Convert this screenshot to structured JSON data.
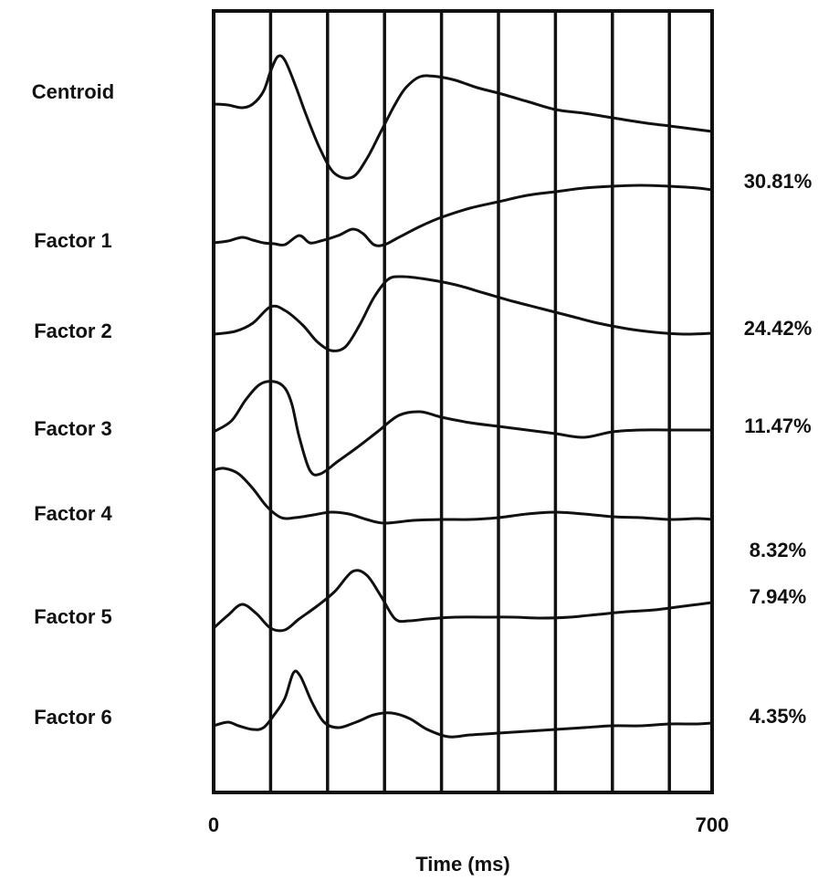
{
  "chart_data": {
    "type": "line",
    "xlabel": "Time (ms)",
    "ylabel": "",
    "xlim": [
      0,
      700
    ],
    "x_ticks": [
      "0",
      "700"
    ],
    "grid": true,
    "grid_interval_ms": 80,
    "series": [
      {
        "name": "Centroid",
        "variance_label": "",
        "points": [
          [
            0,
            0
          ],
          [
            20,
            -1
          ],
          [
            40,
            -4
          ],
          [
            55,
            0
          ],
          [
            70,
            14
          ],
          [
            80,
            36
          ],
          [
            90,
            52
          ],
          [
            100,
            48
          ],
          [
            115,
            20
          ],
          [
            130,
            -12
          ],
          [
            150,
            -50
          ],
          [
            170,
            -76
          ],
          [
            195,
            -80
          ],
          [
            215,
            -60
          ],
          [
            235,
            -30
          ],
          [
            255,
            0
          ],
          [
            270,
            18
          ],
          [
            290,
            30
          ],
          [
            315,
            30
          ],
          [
            340,
            26
          ],
          [
            370,
            18
          ],
          [
            400,
            12
          ],
          [
            440,
            3
          ],
          [
            480,
            -6
          ],
          [
            520,
            -10
          ],
          [
            560,
            -15
          ],
          [
            600,
            -20
          ],
          [
            640,
            -24
          ],
          [
            680,
            -28
          ],
          [
            700,
            -30
          ]
        ]
      },
      {
        "name": "Factor 1",
        "variance_label": "30.81%",
        "points": [
          [
            0,
            0
          ],
          [
            20,
            2
          ],
          [
            40,
            6
          ],
          [
            55,
            3
          ],
          [
            70,
            0
          ],
          [
            85,
            -1
          ],
          [
            100,
            -2
          ],
          [
            120,
            8
          ],
          [
            135,
            0
          ],
          [
            150,
            2
          ],
          [
            175,
            8
          ],
          [
            195,
            15
          ],
          [
            210,
            10
          ],
          [
            225,
            -2
          ],
          [
            240,
            -2
          ],
          [
            260,
            6
          ],
          [
            290,
            18
          ],
          [
            320,
            28
          ],
          [
            360,
            38
          ],
          [
            400,
            45
          ],
          [
            440,
            52
          ],
          [
            480,
            56
          ],
          [
            520,
            60
          ],
          [
            560,
            62
          ],
          [
            600,
            63
          ],
          [
            640,
            62
          ],
          [
            680,
            60
          ],
          [
            700,
            58
          ]
        ]
      },
      {
        "name": "Factor 2",
        "variance_label": "24.42%",
        "points": [
          [
            0,
            0
          ],
          [
            30,
            3
          ],
          [
            55,
            12
          ],
          [
            80,
            30
          ],
          [
            100,
            26
          ],
          [
            125,
            10
          ],
          [
            145,
            -8
          ],
          [
            165,
            -18
          ],
          [
            185,
            -14
          ],
          [
            205,
            10
          ],
          [
            225,
            40
          ],
          [
            245,
            60
          ],
          [
            265,
            63
          ],
          [
            300,
            60
          ],
          [
            340,
            54
          ],
          [
            380,
            45
          ],
          [
            420,
            36
          ],
          [
            460,
            28
          ],
          [
            500,
            20
          ],
          [
            540,
            12
          ],
          [
            580,
            6
          ],
          [
            620,
            2
          ],
          [
            660,
            0
          ],
          [
            700,
            1
          ]
        ]
      },
      {
        "name": "Factor 3",
        "variance_label": "11.47%",
        "points": [
          [
            0,
            0
          ],
          [
            25,
            12
          ],
          [
            45,
            35
          ],
          [
            65,
            52
          ],
          [
            85,
            55
          ],
          [
            100,
            48
          ],
          [
            110,
            30
          ],
          [
            120,
            -5
          ],
          [
            135,
            -42
          ],
          [
            150,
            -46
          ],
          [
            175,
            -32
          ],
          [
            200,
            -18
          ],
          [
            230,
            0
          ],
          [
            260,
            18
          ],
          [
            290,
            22
          ],
          [
            320,
            16
          ],
          [
            360,
            10
          ],
          [
            400,
            6
          ],
          [
            440,
            2
          ],
          [
            480,
            -2
          ],
          [
            520,
            -6
          ],
          [
            560,
            0
          ],
          [
            600,
            2
          ],
          [
            640,
            2
          ],
          [
            680,
            2
          ],
          [
            700,
            2
          ]
        ]
      },
      {
        "name": "Factor 4",
        "variance_label": "8.32%",
        "points": [
          [
            0,
            60
          ],
          [
            15,
            62
          ],
          [
            35,
            56
          ],
          [
            55,
            40
          ],
          [
            75,
            20
          ],
          [
            95,
            8
          ],
          [
            115,
            8
          ],
          [
            140,
            11
          ],
          [
            165,
            14
          ],
          [
            190,
            12
          ],
          [
            215,
            6
          ],
          [
            240,
            2
          ],
          [
            280,
            5
          ],
          [
            320,
            6
          ],
          [
            360,
            6
          ],
          [
            400,
            8
          ],
          [
            440,
            12
          ],
          [
            480,
            14
          ],
          [
            520,
            12
          ],
          [
            560,
            9
          ],
          [
            600,
            8
          ],
          [
            640,
            6
          ],
          [
            680,
            7
          ],
          [
            700,
            6
          ]
        ]
      },
      {
        "name": "Factor 5",
        "variance_label": "7.94%",
        "points": [
          [
            0,
            0
          ],
          [
            20,
            14
          ],
          [
            40,
            26
          ],
          [
            60,
            16
          ],
          [
            80,
            0
          ],
          [
            100,
            -2
          ],
          [
            120,
            10
          ],
          [
            145,
            24
          ],
          [
            170,
            40
          ],
          [
            195,
            62
          ],
          [
            215,
            58
          ],
          [
            235,
            35
          ],
          [
            255,
            10
          ],
          [
            275,
            8
          ],
          [
            300,
            10
          ],
          [
            340,
            12
          ],
          [
            380,
            12
          ],
          [
            420,
            12
          ],
          [
            460,
            11
          ],
          [
            500,
            12
          ],
          [
            540,
            15
          ],
          [
            580,
            18
          ],
          [
            620,
            20
          ],
          [
            660,
            24
          ],
          [
            700,
            28
          ]
        ]
      },
      {
        "name": "Factor 6",
        "variance_label": "4.35%",
        "points": [
          [
            0,
            0
          ],
          [
            20,
            4
          ],
          [
            35,
            0
          ],
          [
            55,
            -4
          ],
          [
            70,
            -2
          ],
          [
            85,
            12
          ],
          [
            100,
            30
          ],
          [
            112,
            58
          ],
          [
            122,
            54
          ],
          [
            138,
            26
          ],
          [
            155,
            4
          ],
          [
            175,
            -2
          ],
          [
            200,
            4
          ],
          [
            225,
            12
          ],
          [
            250,
            14
          ],
          [
            275,
            8
          ],
          [
            300,
            -4
          ],
          [
            330,
            -12
          ],
          [
            360,
            -10
          ],
          [
            400,
            -8
          ],
          [
            440,
            -6
          ],
          [
            480,
            -4
          ],
          [
            520,
            -2
          ],
          [
            560,
            0
          ],
          [
            600,
            0
          ],
          [
            640,
            2
          ],
          [
            680,
            2
          ],
          [
            700,
            3
          ]
        ]
      }
    ]
  }
}
